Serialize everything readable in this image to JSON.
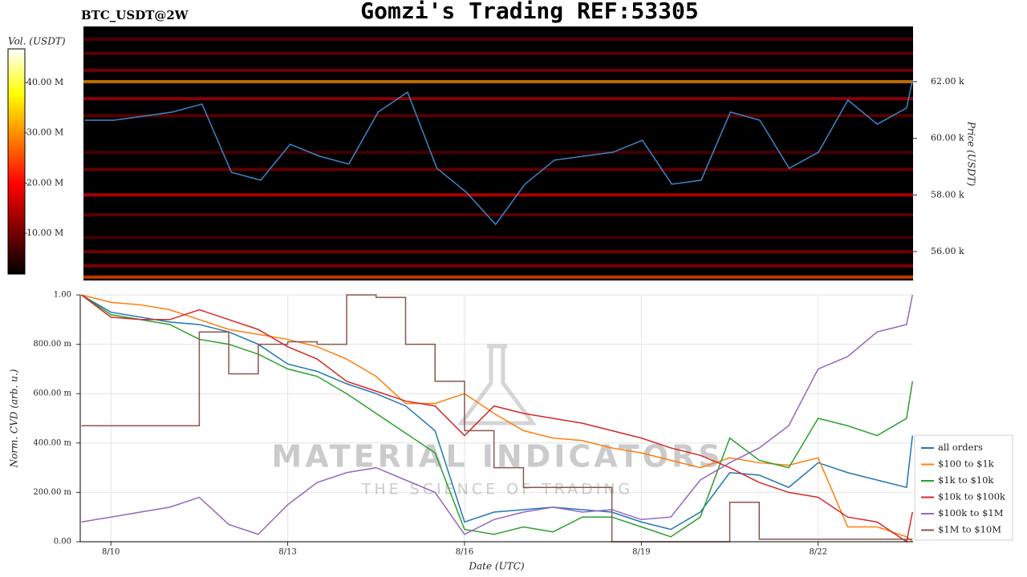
{
  "chart_data": [
    {
      "type": "heatmap",
      "title": "Gomzi's Trading REF:53305",
      "subtitle": "BTC_USDT@2W",
      "y_label": "Price (USDT)",
      "colorbar_label": "Vol. (USDT)",
      "xlim": [
        9.48,
        23.61
      ],
      "ylim": [
        54980,
        63950
      ],
      "yticks": [
        {
          "value": 56000,
          "label": "56.00 k"
        },
        {
          "value": 58000,
          "label": "58.00 k"
        },
        {
          "value": 60000,
          "label": "60.00 k"
        },
        {
          "value": 62000,
          "label": "62.00 k"
        }
      ],
      "clim": [
        1900000,
        46700000
      ],
      "cticks": [
        {
          "value": 10000000,
          "label": "10.00 M"
        },
        {
          "value": 20000000,
          "label": "20.00 M"
        },
        {
          "value": 30000000,
          "label": "30.00 M"
        },
        {
          "value": 40000000,
          "label": "40.00 M"
        }
      ],
      "heatmap": {
        "prices": [
          63500,
          63000,
          62400,
          62000,
          61400,
          60800,
          59500,
          58900,
          58000,
          57300,
          56500,
          56000,
          55500,
          55100
        ],
        "volumes": [
          9000000,
          10000000,
          12000000,
          30000000,
          15000000,
          10000000,
          8000000,
          11000000,
          18000000,
          10000000,
          8000000,
          12000000,
          14000000,
          25000000
        ]
      },
      "x": [
        9.5,
        10,
        10.5,
        11,
        11.5,
        12,
        12.5,
        13,
        13.5,
        14,
        14.5,
        15,
        15.5,
        16,
        16.5,
        17,
        17.5,
        18,
        18.5,
        19,
        19.5,
        20,
        20.5,
        21,
        21.5,
        22,
        22.5,
        23,
        23.5,
        23.6
      ],
      "series": [
        {
          "color": "#3a87c8",
          "values": [
            60640,
            60640,
            60780,
            60930,
            61210,
            58800,
            58520,
            59790,
            59370,
            59090,
            60930,
            61630,
            58940,
            58100,
            56960,
            58380,
            59230,
            59370,
            59510,
            59930,
            58380,
            58520,
            60930,
            60640,
            58940,
            59510,
            61350,
            60500,
            61070,
            62060
          ]
        }
      ]
    },
    {
      "type": "line",
      "x_label": "Date (UTC)",
      "y_label": "Norm. CVD (arb. u.)",
      "watermark": "MATERIAL INDICATORS",
      "watermark_sub": "THE SCIENCE OF TRADING",
      "grid": true,
      "legend": "lower right",
      "xlim": [
        9.48,
        23.61
      ],
      "ylim": [
        0,
        1
      ],
      "xticks": [
        {
          "value": 10,
          "label": "8/10"
        },
        {
          "value": 13,
          "label": "8/13"
        },
        {
          "value": 16,
          "label": "8/16"
        },
        {
          "value": 19,
          "label": "8/19"
        },
        {
          "value": 22,
          "label": "8/22"
        }
      ],
      "yticks": [
        {
          "value": 0,
          "label": "0.00"
        },
        {
          "value": 0.2,
          "label": "200.00 m"
        },
        {
          "value": 0.4,
          "label": "400.00 m"
        },
        {
          "value": 0.6,
          "label": "600.00 m"
        },
        {
          "value": 0.8,
          "label": "800.00 m"
        },
        {
          "value": 1,
          "label": "1.00"
        }
      ],
      "x": [
        9.5,
        10,
        10.5,
        11,
        11.5,
        12,
        12.5,
        13,
        13.5,
        14,
        14.5,
        15,
        15.5,
        16,
        16.5,
        17,
        17.5,
        18,
        18.5,
        19,
        19.5,
        20,
        20.5,
        21,
        21.5,
        22,
        22.5,
        23,
        23.5,
        23.6
      ],
      "series": [
        {
          "name": "all orders",
          "color": "#1f77b4",
          "values": [
            1.0,
            0.93,
            0.91,
            0.89,
            0.88,
            0.85,
            0.8,
            0.72,
            0.69,
            0.64,
            0.6,
            0.55,
            0.45,
            0.08,
            0.12,
            0.13,
            0.14,
            0.13,
            0.12,
            0.08,
            0.05,
            0.12,
            0.28,
            0.27,
            0.22,
            0.32,
            0.28,
            0.25,
            0.22,
            0.43
          ]
        },
        {
          "name": "$100 to $1k",
          "color": "#ff7f0e",
          "values": [
            1.0,
            0.97,
            0.96,
            0.94,
            0.9,
            0.86,
            0.84,
            0.82,
            0.79,
            0.74,
            0.67,
            0.56,
            0.56,
            0.6,
            0.52,
            0.45,
            0.42,
            0.41,
            0.38,
            0.36,
            0.33,
            0.3,
            0.34,
            0.32,
            0.31,
            0.34,
            0.06,
            0.06,
            0.02,
            0.0
          ]
        },
        {
          "name": "$1k to $10k",
          "color": "#2ca02c",
          "values": [
            1.0,
            0.92,
            0.9,
            0.88,
            0.82,
            0.8,
            0.76,
            0.7,
            0.67,
            0.6,
            0.52,
            0.44,
            0.36,
            0.05,
            0.03,
            0.06,
            0.04,
            0.1,
            0.1,
            0.06,
            0.02,
            0.1,
            0.42,
            0.33,
            0.3,
            0.5,
            0.47,
            0.43,
            0.5,
            0.65
          ]
        },
        {
          "name": "$10k to $100k",
          "color": "#d62728",
          "values": [
            1.0,
            0.91,
            0.9,
            0.9,
            0.94,
            0.9,
            0.86,
            0.79,
            0.74,
            0.65,
            0.61,
            0.57,
            0.55,
            0.43,
            0.55,
            0.52,
            0.5,
            0.48,
            0.45,
            0.42,
            0.38,
            0.35,
            0.3,
            0.24,
            0.2,
            0.18,
            0.1,
            0.08,
            0.0,
            0.12
          ]
        },
        {
          "name": "$100k to $1M",
          "color": "#9467bd",
          "values": [
            0.08,
            0.1,
            0.12,
            0.14,
            0.18,
            0.07,
            0.03,
            0.15,
            0.24,
            0.28,
            0.3,
            0.25,
            0.2,
            0.03,
            0.09,
            0.12,
            0.14,
            0.12,
            0.13,
            0.09,
            0.1,
            0.25,
            0.32,
            0.38,
            0.47,
            0.7,
            0.75,
            0.85,
            0.88,
            1.0
          ]
        },
        {
          "name": "$1M to $10M",
          "color": "#8c564b",
          "step": true,
          "values": [
            0.47,
            0.47,
            0.47,
            0.47,
            0.85,
            0.68,
            0.8,
            0.81,
            0.8,
            1.0,
            0.99,
            0.8,
            0.65,
            0.45,
            0.3,
            0.22,
            0.22,
            0.22,
            0.0,
            0.0,
            0.0,
            0.0,
            0.16,
            0.01,
            0.01,
            0.01,
            0.01,
            0.01,
            0.01,
            0.01
          ]
        }
      ]
    }
  ]
}
